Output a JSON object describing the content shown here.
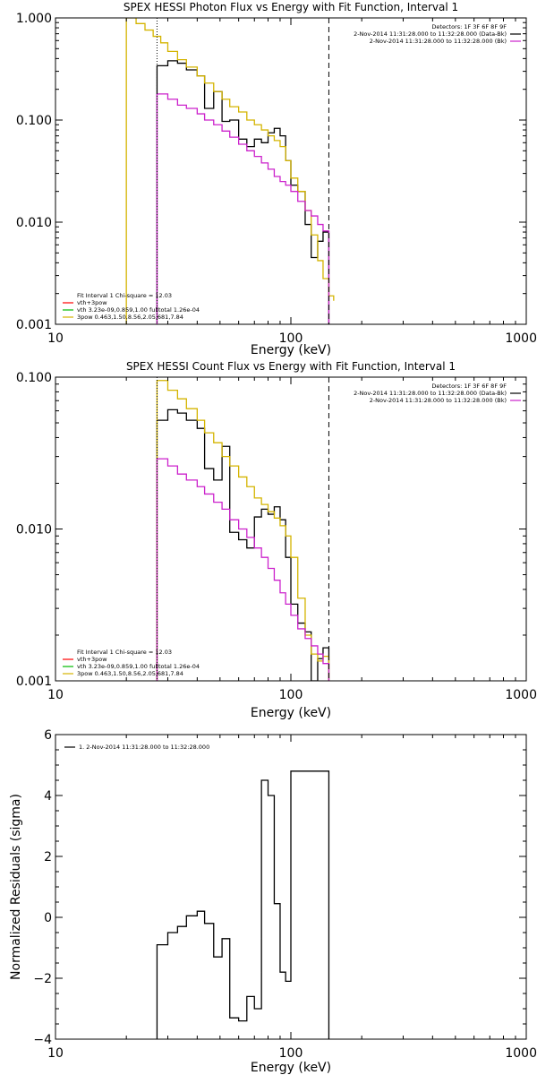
{
  "colors": {
    "background": "#ffffff",
    "frame": "#000000",
    "black": "#000000",
    "yellow": "#d4b400",
    "magenta": "#cc22cc",
    "green": "#00bb00",
    "red": "#ff0000",
    "dashed_line": "#000000"
  },
  "chart_data": [
    {
      "type": "line",
      "title": "SPEX HESSI Photon Flux vs Energy with Fit Function, Interval 1",
      "xlabel": "Energy (keV)",
      "ylabel": "",
      "xscale": "log",
      "yscale": "log",
      "xlim": [
        10,
        1000
      ],
      "ylim": [
        0.001,
        1.0
      ],
      "xticks": [
        10,
        100,
        1000
      ],
      "xtick_labels": [
        "10",
        "100",
        "1000"
      ],
      "yticks": [
        0.001,
        0.01,
        0.1,
        1.0
      ],
      "ytick_labels": [
        "0.001",
        "0.010",
        "0.100",
        "1.000"
      ],
      "grid": false,
      "vlines": [
        {
          "x": 27.0,
          "style": "dotted"
        },
        {
          "x": 145.0,
          "style": "dashed"
        }
      ],
      "legend_top_right": {
        "position": "top-right",
        "entries": [
          {
            "text": "Detectors: 1F 3F 6F 8F 9F",
            "color": ""
          },
          {
            "text": "2-Nov-2014 11:31:28.000 to 11:32:28.000 (Data-Bk)",
            "color": "black"
          },
          {
            "text": "2-Nov-2014 11:31:28.000 to 11:32:28.000 (Bk)",
            "color": "magenta"
          }
        ]
      },
      "legend_bottom_left": {
        "position": "bottom-left",
        "entries": [
          {
            "text": "Fit Interval 1   Chi-square = 12.03",
            "color": ""
          },
          {
            "text": "vth+3pow",
            "color": "red"
          },
          {
            "text": "vth 3.23e-09,0.859,1.00  fulltotal 1.26e-04",
            "color": "green"
          },
          {
            "text": "3pow 0.463,1.50,8.56,2.05,681,7.84",
            "color": "yellow"
          }
        ]
      },
      "series": [
        {
          "name": "2-Nov-2014 11:31:28.000 to 11:32:28.000 (Data-Bk)",
          "color": "black",
          "style": "histogram",
          "bin_edges": [
            27,
            30,
            33,
            36,
            40,
            43,
            47,
            51,
            55,
            60,
            65,
            70,
            75,
            80,
            85,
            90,
            95,
            100,
            107,
            115,
            122,
            130,
            137,
            145
          ],
          "values": [
            0.34,
            0.38,
            0.36,
            0.31,
            0.27,
            0.13,
            0.19,
            0.097,
            0.1,
            0.065,
            0.055,
            0.065,
            0.06,
            0.075,
            0.083,
            0.07,
            0.04,
            0.023,
            0.02,
            0.0095,
            0.0045,
            0.0065,
            0.008
          ]
        },
        {
          "name": "3pow 0.463,1.50,8.56,2.05,681,7.84",
          "color": "yellow",
          "style": "histogram",
          "bin_edges": [
            20,
            22,
            24,
            26,
            28,
            30,
            33,
            36,
            40,
            43,
            47,
            51,
            55,
            60,
            65,
            70,
            75,
            80,
            85,
            90,
            95,
            100,
            107,
            115,
            122,
            130,
            137,
            145,
            152
          ],
          "values": [
            1.0,
            0.88,
            0.76,
            0.66,
            0.57,
            0.47,
            0.39,
            0.33,
            0.27,
            0.23,
            0.19,
            0.16,
            0.135,
            0.12,
            0.1,
            0.09,
            0.08,
            0.07,
            0.063,
            0.055,
            0.04,
            0.027,
            0.02,
            0.013,
            0.0075,
            0.0042,
            0.0028,
            0.0019,
            0.0017
          ]
        },
        {
          "name": "2-Nov-2014 11:31:28.000 to 11:32:28.000 (Bk)",
          "color": "magenta",
          "style": "histogram",
          "bin_edges": [
            27,
            30,
            33,
            36,
            40,
            43,
            47,
            51,
            55,
            60,
            65,
            70,
            75,
            80,
            85,
            90,
            95,
            100,
            107,
            115,
            122,
            130,
            137,
            145
          ],
          "values": [
            0.18,
            0.16,
            0.14,
            0.13,
            0.115,
            0.1,
            0.09,
            0.078,
            0.068,
            0.058,
            0.05,
            0.044,
            0.038,
            0.033,
            0.028,
            0.025,
            0.023,
            0.02,
            0.016,
            0.013,
            0.0115,
            0.0095,
            0.0082
          ]
        }
      ]
    },
    {
      "type": "line",
      "title": "SPEX HESSI Count Flux vs Energy with Fit Function, Interval 1",
      "xlabel": "Energy (keV)",
      "ylabel": "",
      "xscale": "log",
      "yscale": "log",
      "xlim": [
        10,
        1000
      ],
      "ylim": [
        0.001,
        0.1
      ],
      "xticks": [
        10,
        100,
        1000
      ],
      "xtick_labels": [
        "10",
        "100",
        "1000"
      ],
      "yticks": [
        0.001,
        0.01,
        0.1
      ],
      "ytick_labels": [
        "0.001",
        "0.010",
        "0.100"
      ],
      "grid": false,
      "vlines": [
        {
          "x": 27.0,
          "style": "dotted"
        },
        {
          "x": 145.0,
          "style": "dashed"
        }
      ],
      "legend_top_right": {
        "position": "top-right",
        "entries": [
          {
            "text": "Detectors: 1F 3F 6F 8F 9F",
            "color": ""
          },
          {
            "text": "2-Nov-2014 11:31:28.000 to 11:32:28.000 (Data-Bk)",
            "color": "black"
          },
          {
            "text": "2-Nov-2014 11:31:28.000 to 11:32:28.000 (Bk)",
            "color": "magenta"
          }
        ]
      },
      "legend_bottom_left": {
        "position": "bottom-left",
        "entries": [
          {
            "text": "Fit Interval 1   Chi-square = 12.03",
            "color": ""
          },
          {
            "text": "vth+3pow",
            "color": "red"
          },
          {
            "text": "vth 3.23e-09,0.859,1.00  fulltotal 1.26e-04",
            "color": "green"
          },
          {
            "text": "3pow 0.463,1.50,8.56,2.05,681,7.84",
            "color": "yellow"
          }
        ]
      },
      "series": [
        {
          "name": "2-Nov-2014 11:31:28.000 to 11:32:28.000 (Data-Bk)",
          "color": "black",
          "style": "histogram",
          "bin_edges": [
            27,
            30,
            33,
            36,
            40,
            43,
            47,
            51,
            55,
            60,
            65,
            70,
            75,
            80,
            85,
            90,
            95,
            100,
            107,
            115,
            122,
            130,
            137,
            145
          ],
          "values": [
            0.052,
            0.061,
            0.058,
            0.052,
            0.046,
            0.025,
            0.021,
            0.035,
            0.0095,
            0.0085,
            0.0075,
            0.012,
            0.0135,
            0.0125,
            0.014,
            0.0115,
            0.0065,
            0.0032,
            0.0024,
            0.0021,
            0.001,
            0.0014,
            0.00165
          ]
        },
        {
          "name": "3pow 0.463,1.50,8.56,2.05,681,7.84",
          "color": "yellow",
          "style": "histogram",
          "bin_edges": [
            27,
            30,
            33,
            36,
            40,
            43,
            47,
            51,
            55,
            60,
            65,
            70,
            75,
            80,
            85,
            90,
            95,
            100,
            107,
            115,
            122,
            130,
            137,
            145
          ],
          "values": [
            0.095,
            0.082,
            0.072,
            0.062,
            0.052,
            0.043,
            0.037,
            0.03,
            0.026,
            0.022,
            0.019,
            0.016,
            0.0145,
            0.013,
            0.0118,
            0.0105,
            0.009,
            0.0065,
            0.0035,
            0.002,
            0.0015,
            0.00135,
            0.00145
          ]
        },
        {
          "name": "2-Nov-2014 11:31:28.000 to 11:32:28.000 (Bk)",
          "color": "magenta",
          "style": "histogram",
          "bin_edges": [
            27,
            30,
            33,
            36,
            40,
            43,
            47,
            51,
            55,
            60,
            65,
            70,
            75,
            80,
            85,
            90,
            95,
            100,
            107,
            115,
            122,
            130,
            137,
            145
          ],
          "values": [
            0.029,
            0.026,
            0.023,
            0.021,
            0.019,
            0.017,
            0.015,
            0.0135,
            0.0115,
            0.01,
            0.0088,
            0.0075,
            0.0065,
            0.0055,
            0.0046,
            0.0038,
            0.0032,
            0.0027,
            0.0022,
            0.0019,
            0.0017,
            0.0015,
            0.0013
          ]
        }
      ]
    },
    {
      "type": "line",
      "title": "",
      "xlabel": "Energy (keV)",
      "ylabel": "Normalized Residuals (sigma)",
      "xscale": "log",
      "yscale": "linear",
      "xlim": [
        10,
        1000
      ],
      "ylim": [
        -4,
        6
      ],
      "xticks": [
        10,
        100,
        1000
      ],
      "xtick_labels": [
        "10",
        "100",
        "1000"
      ],
      "yticks": [
        -4,
        -2,
        0,
        2,
        4,
        6
      ],
      "ytick_labels": [
        "−4",
        "−2",
        "0",
        "2",
        "4",
        "6"
      ],
      "grid": false,
      "legend_top_left": {
        "position": "top-left",
        "entries": [
          {
            "text": "1.  2-Nov-2014 11:31:28.000 to 11:32:28.000",
            "color": "black"
          }
        ]
      },
      "series": [
        {
          "name": "1.  2-Nov-2014 11:31:28.000 to 11:32:28.000",
          "color": "black",
          "style": "histogram",
          "bin_edges": [
            27,
            30,
            33,
            36,
            40,
            43,
            47,
            51,
            55,
            60,
            65,
            70,
            75,
            80,
            85,
            90,
            95,
            100,
            107,
            115,
            122,
            130,
            137,
            145
          ],
          "values": [
            -0.9,
            -0.5,
            -0.3,
            0.05,
            0.2,
            -0.2,
            -1.3,
            -0.7,
            -3.3,
            -3.4,
            -2.6,
            -3.0,
            4.5,
            4.0,
            0.45,
            -1.8,
            -2.1,
            4.8,
            4.8,
            4.8,
            4.8,
            4.8,
            4.8
          ]
        }
      ]
    }
  ]
}
